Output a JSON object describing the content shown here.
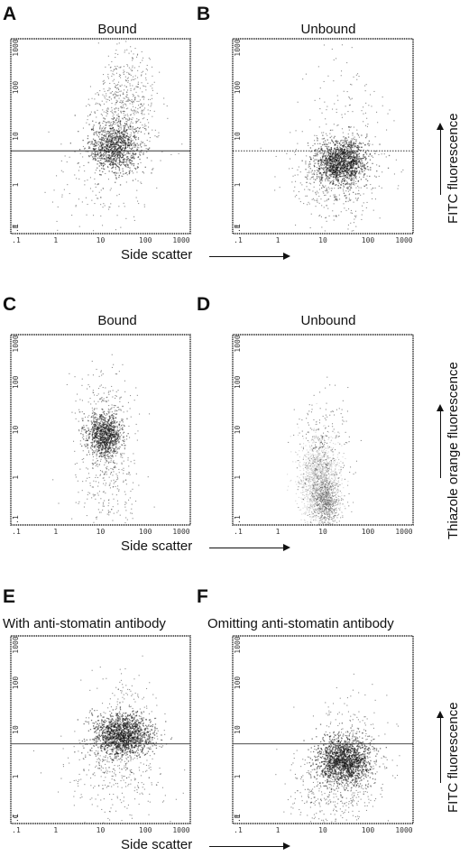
{
  "chart_data": [
    {
      "panel": "A",
      "type": "scatter",
      "title": "Bound",
      "x_scale": "log",
      "y_scale": "log",
      "xlim": [
        0.1,
        1000
      ],
      "ylim": [
        0.1,
        1000
      ],
      "x_ticks": [
        ".1",
        "1",
        "10",
        "100",
        "1000"
      ],
      "y_ticks": [
        ".1",
        "1",
        "10",
        "100",
        "1000"
      ],
      "corner_mark": "E",
      "threshold_y": 5,
      "threshold_style": "solid",
      "populations": [
        {
          "cx": 20,
          "cy": 6,
          "sx": 0.28,
          "sy": 0.25,
          "n": 900,
          "level": "dense"
        },
        {
          "cx": 35,
          "cy": 40,
          "sx": 0.35,
          "sy": 0.55,
          "n": 650,
          "level": "sparse"
        },
        {
          "cx": 10,
          "cy": 1,
          "sx": 0.6,
          "sy": 0.7,
          "n": 160,
          "level": "sparse"
        }
      ]
    },
    {
      "panel": "B",
      "type": "scatter",
      "title": "Unbound",
      "x_scale": "log",
      "y_scale": "log",
      "xlim": [
        0.1,
        1000
      ],
      "ylim": [
        0.1,
        1000
      ],
      "x_ticks": [
        ".1",
        "1",
        "10",
        "100",
        "1000"
      ],
      "y_ticks": [
        ".1",
        "1",
        "10",
        "100",
        "1000"
      ],
      "corner_mark": "E",
      "threshold_y": 5,
      "threshold_style": "dotted",
      "populations": [
        {
          "cx": 25,
          "cy": 3,
          "sx": 0.28,
          "sy": 0.22,
          "n": 1300,
          "level": "dense"
        },
        {
          "cx": 18,
          "cy": 1.5,
          "sx": 0.5,
          "sy": 0.5,
          "n": 500,
          "level": "sparse"
        },
        {
          "cx": 30,
          "cy": 30,
          "sx": 0.4,
          "sy": 0.6,
          "n": 120,
          "level": "sparse"
        }
      ]
    },
    {
      "panel": "C",
      "type": "scatter",
      "title": "Bound",
      "x_scale": "log",
      "y_scale": "log",
      "xlim": [
        0.1,
        1000
      ],
      "ylim": [
        0.1,
        1000
      ],
      "x_ticks": [
        ".1",
        "1",
        "10",
        "100",
        "1000"
      ],
      "y_ticks": [
        ".1",
        "1",
        "10",
        "100",
        "1000"
      ],
      "threshold_y": null,
      "populations": [
        {
          "cx": 12,
          "cy": 8,
          "sx": 0.18,
          "sy": 0.22,
          "n": 800,
          "level": "dense"
        },
        {
          "cx": 12,
          "cy": 8,
          "sx": 0.3,
          "sy": 0.6,
          "n": 500,
          "level": "sparse"
        },
        {
          "cx": 15,
          "cy": 0.5,
          "sx": 0.4,
          "sy": 0.5,
          "n": 150,
          "level": "sparse"
        }
      ]
    },
    {
      "panel": "D",
      "type": "scatter",
      "title": "Unbound",
      "x_scale": "log",
      "y_scale": "log",
      "xlim": [
        0.1,
        1000
      ],
      "ylim": [
        0.1,
        1000
      ],
      "x_ticks": [
        ".1",
        "1",
        "10",
        "100",
        "1000"
      ],
      "y_ticks": [
        ".1",
        "1",
        "10",
        "100",
        "1000"
      ],
      "threshold_y": null,
      "populations": [
        {
          "cx": 8,
          "cy": 0.8,
          "sx": 0.22,
          "sy": 0.45,
          "n": 1500,
          "level": "light"
        },
        {
          "cx": 12,
          "cy": 0.3,
          "sx": 0.15,
          "sy": 0.25,
          "n": 500,
          "level": "medium"
        },
        {
          "cx": 10,
          "cy": 3,
          "sx": 0.3,
          "sy": 0.6,
          "n": 300,
          "level": "sparse"
        }
      ]
    },
    {
      "panel": "E",
      "type": "scatter",
      "title": "With anti-stomatin antibody",
      "x_scale": "log",
      "y_scale": "log",
      "xlim": [
        0.1,
        1000
      ],
      "ylim": [
        0.1,
        1000
      ],
      "x_ticks": [
        ".1",
        "1",
        "10",
        "100",
        "1000"
      ],
      "y_ticks": [
        ".1",
        "1",
        "10",
        "100",
        "1000"
      ],
      "corner_mark": "C",
      "threshold_y": 5,
      "threshold_style": "solid",
      "populations": [
        {
          "cx": 30,
          "cy": 8,
          "sx": 0.32,
          "sy": 0.22,
          "n": 1400,
          "level": "dense"
        },
        {
          "cx": 20,
          "cy": 2,
          "sx": 0.55,
          "sy": 0.55,
          "n": 450,
          "level": "sparse"
        },
        {
          "cx": 40,
          "cy": 40,
          "sx": 0.4,
          "sy": 0.4,
          "n": 100,
          "level": "sparse"
        }
      ]
    },
    {
      "panel": "F",
      "type": "scatter",
      "title": "Omitting anti-stomatin antibody",
      "x_scale": "log",
      "y_scale": "log",
      "xlim": [
        0.1,
        1000
      ],
      "ylim": [
        0.1,
        1000
      ],
      "x_ticks": [
        ".1",
        "1",
        "10",
        "100",
        "1000"
      ],
      "y_ticks": [
        ".1",
        "1",
        "10",
        "100",
        "1000"
      ],
      "corner_mark": "E",
      "threshold_y": 5,
      "threshold_style": "solid",
      "populations": [
        {
          "cx": 28,
          "cy": 2.2,
          "sx": 0.3,
          "sy": 0.25,
          "n": 1500,
          "level": "dense"
        },
        {
          "cx": 20,
          "cy": 0.8,
          "sx": 0.5,
          "sy": 0.5,
          "n": 500,
          "level": "sparse"
        },
        {
          "cx": 40,
          "cy": 8,
          "sx": 0.4,
          "sy": 0.4,
          "n": 150,
          "level": "sparse"
        }
      ]
    }
  ],
  "labels": {
    "letters": [
      "A",
      "B",
      "C",
      "D",
      "E",
      "F"
    ],
    "side_scatter": "Side scatter",
    "fitc": "FITC fluorescence",
    "thiazole": "Thiazole orange fluorescence"
  }
}
